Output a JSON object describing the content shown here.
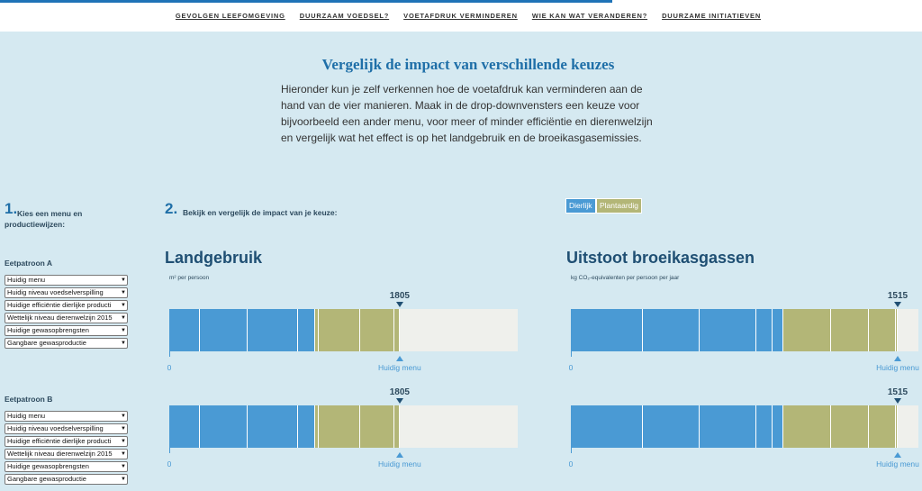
{
  "nav": [
    "GEVOLGEN LEEFOMGEVING",
    "DUURZAAM VOEDSEL?",
    "VOETAFDRUK VERMINDEREN",
    "WIE KAN WAT VERANDEREN?",
    "DUURZAME INITIATIEVEN"
  ],
  "header": {
    "title": "Vergelijk de impact van verschillende keuzes",
    "paragraph": "Hieronder kun je zelf verkennen hoe de voetafdruk kan verminderen aan de hand van de vier manieren. Maak in de drop-downvensters een keuze voor bijvoorbeeld een ander menu, voor meer of minder efficiëntie en dierenwelzijn en vergelijk wat het effect is op het landgebruik en de broeikasgasemissies."
  },
  "step1": {
    "number": "1.",
    "label": "Kies een menu en productiewijzen:"
  },
  "patterns": [
    {
      "name": "Eetpatroon A",
      "options": [
        "Huidig menu",
        "Huidig niveau voedselverspilling",
        "Huidige efficiëntie dierlijke producti",
        "Wettelijk niveau dierenwelzijn 2015",
        "Huidige gewasopbrengsten",
        "Gangbare gewasproductie"
      ]
    },
    {
      "name": "Eetpatroon B",
      "options": [
        "Huidig menu",
        "Huidig niveau voedselverspilling",
        "Huidige efficiëntie dierlijke producti",
        "Wettelijk niveau dierenwelzijn 2015",
        "Huidige gewasopbrengsten",
        "Gangbare gewasproductie"
      ]
    }
  ],
  "step2": {
    "number": "2.",
    "label": "Bekijk en vergelijk de impact van je keuze:"
  },
  "legend": [
    {
      "name": "Dierlijk",
      "color": "#4a9ad4"
    },
    {
      "name": "Plantaardig",
      "color": "#b3b677"
    }
  ],
  "charts": [
    {
      "title": "Landgebruik",
      "unit": "m² per persoon",
      "xlim": [
        0,
        2730
      ],
      "xticks": [
        0
      ],
      "marker_label": "Huidig menu",
      "rows": [
        {
          "total": 1805,
          "dierlijk": [
            240,
            374,
            395,
            134
          ],
          "plantaardig": [
            28,
            324,
            268,
            42
          ]
        },
        {
          "total": 1805,
          "dierlijk": [
            240,
            374,
            395,
            134
          ],
          "plantaardig": [
            28,
            324,
            268,
            42
          ]
        }
      ]
    },
    {
      "title": "Uitstoot broeikasgassen",
      "unit": "kg CO₂-equivalenten per persoon per jaar",
      "xlim": [
        0,
        1611
      ],
      "xticks": [
        0
      ],
      "marker_label": "Huidig menu",
      "rows": [
        {
          "total": 1515,
          "dierlijk": [
            334,
            263,
            263,
            75,
            50
          ],
          "plantaardig": [
            221,
            175,
            125,
            9
          ]
        },
        {
          "total": 1515,
          "dierlijk": [
            334,
            263,
            263,
            75,
            50
          ],
          "plantaardig": [
            221,
            175,
            125,
            9
          ]
        }
      ]
    }
  ]
}
